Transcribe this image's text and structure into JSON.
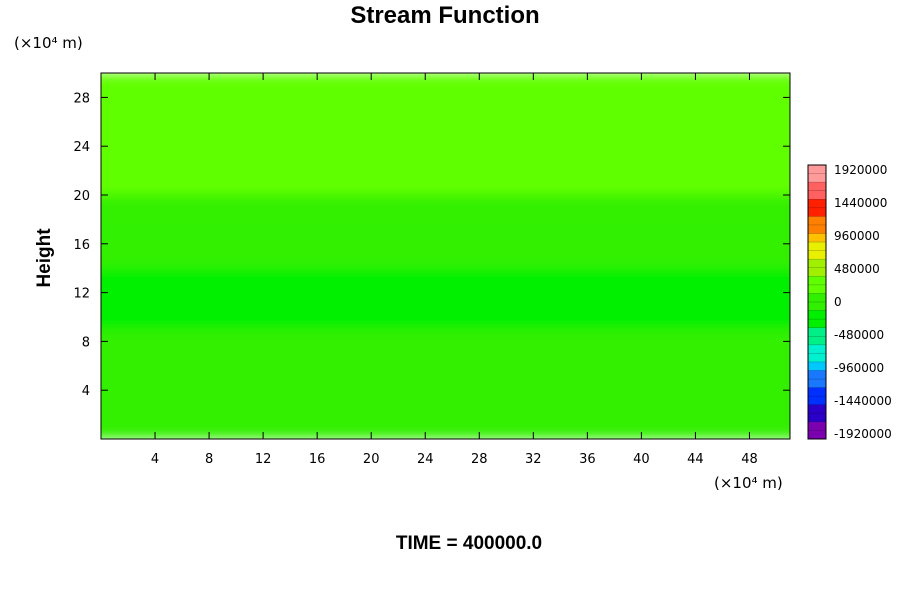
{
  "chart_data": {
    "type": "heatmap",
    "title": "Stream Function",
    "xlabel": "",
    "ylabel": "Height",
    "x_unit": "(×10⁴ m)",
    "y_unit": "(×10⁴ m)",
    "xlim": [
      0,
      51
    ],
    "ylim": [
      0,
      30
    ],
    "xticks": [
      4,
      8,
      12,
      16,
      20,
      24,
      28,
      32,
      36,
      40,
      44,
      48
    ],
    "yticks": [
      4,
      8,
      12,
      16,
      20,
      24,
      28
    ],
    "colorbar": {
      "ticks": [
        "1920000",
        "1440000",
        "960000",
        "480000",
        "0",
        "-480000",
        "-960000",
        "-1440000",
        "-1920000"
      ],
      "range": [
        -1920000,
        1920000
      ]
    },
    "field_bands": [
      {
        "y_range": [
          20,
          30
        ],
        "value": 160000
      },
      {
        "y_range": [
          17,
          20
        ],
        "value": 60000
      },
      {
        "y_range": [
          14,
          17
        ],
        "value": -40000
      },
      {
        "y_range": [
          9,
          14
        ],
        "value": -120000
      },
      {
        "y_range": [
          0,
          9
        ],
        "value": -20000
      }
    ],
    "field_features": [
      {
        "x_range": [
          16,
          38
        ],
        "y_range": [
          12,
          13.5
        ],
        "value": -200000
      },
      {
        "x_range": [
          18,
          38
        ],
        "y_range": [
          17.5,
          19
        ],
        "value": 0
      }
    ],
    "footer": "TIME = 400000.0"
  }
}
